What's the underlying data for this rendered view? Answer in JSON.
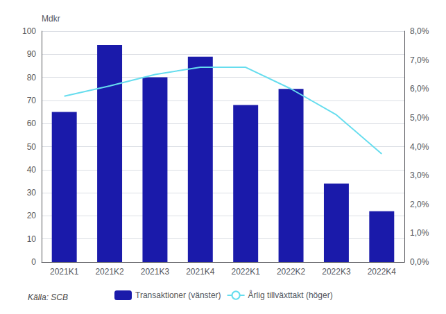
{
  "chart_data": {
    "type": "bar",
    "categories": [
      "2021K1",
      "2021K2",
      "2021K3",
      "2021K4",
      "2022K1",
      "2022K2",
      "2022K3",
      "2022K4"
    ],
    "series": [
      {
        "name": "Transaktioner (vänster)",
        "type": "bar",
        "color": "#1a1aaa",
        "values": [
          65,
          94,
          80,
          89,
          68,
          75,
          34,
          22
        ]
      },
      {
        "name": "Årlig tillväxttakt (höger)",
        "type": "line",
        "color": "#66ddee",
        "axis": "y2",
        "values": [
          5.75,
          6.1,
          6.5,
          6.75,
          6.75,
          6.0,
          5.1,
          3.75
        ]
      }
    ],
    "ylabel": "Mdkr",
    "ylim": [
      0,
      100
    ],
    "yticks": [
      0,
      10,
      20,
      30,
      40,
      50,
      60,
      70,
      80,
      90,
      100
    ],
    "y2lim": [
      0.0,
      8.0
    ],
    "y2ticks": [
      {
        "value": 0.0,
        "label": "0,0%"
      },
      {
        "value": 1.0,
        "label": "1,0%"
      },
      {
        "value": 2.0,
        "label": "2,0%"
      },
      {
        "value": 3.0,
        "label": "3,0%"
      },
      {
        "value": 4.0,
        "label": "4,0%"
      },
      {
        "value": 5.0,
        "label": "5,0%"
      },
      {
        "value": 6.0,
        "label": "6,0%"
      },
      {
        "value": 7.0,
        "label": "7,0%"
      },
      {
        "value": 8.0,
        "label": "8,0%"
      }
    ],
    "grid": true,
    "legend": "bottom",
    "annotations": [
      "Källa: SCB"
    ]
  }
}
